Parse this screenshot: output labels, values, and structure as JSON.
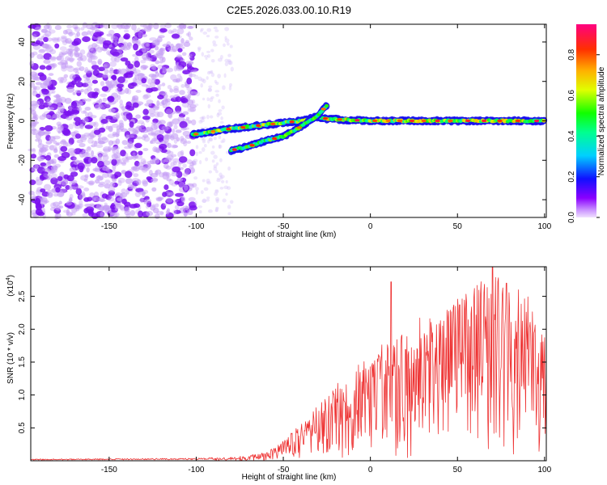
{
  "chart_data": [
    {
      "type": "heatmap",
      "title": "C2E5.2026.033.00.10.R19",
      "xlabel": "Height of straight line (km)",
      "ylabel": "Frequency (Hz)",
      "xlim": [
        -195,
        101
      ],
      "ylim": [
        -49,
        49
      ],
      "x_ticks": [
        -150,
        -100,
        -50,
        0,
        50,
        100
      ],
      "y_ticks": [
        -40,
        -20,
        0,
        20,
        40
      ],
      "x_tick_labels": [
        "-150",
        "-100",
        "-50",
        "0",
        "50",
        "100"
      ],
      "y_tick_labels": [
        "-40",
        "-20",
        "0",
        "20",
        "40"
      ],
      "colorbar": {
        "label": "Normalized spectral amplitude",
        "range": [
          0,
          0.95
        ],
        "ticks": [
          0.0,
          0.2,
          0.4,
          0.6,
          0.8
        ],
        "tick_labels": [
          "0.0",
          "0.2",
          "0.4",
          "0.6",
          "0.8"
        ]
      },
      "features": [
        {
          "name": "main-trace",
          "points": [
            [
              -102,
              -7
            ],
            [
              -80,
              -4
            ],
            [
              -60,
              -2
            ],
            [
              -40,
              0
            ],
            [
              -30,
              2
            ],
            [
              -25,
              1
            ],
            [
              0,
              0
            ],
            [
              50,
              0
            ],
            [
              100,
              0
            ]
          ]
        },
        {
          "name": "secondary-trace",
          "points": [
            [
              -80,
              -15
            ],
            [
              -70,
              -13
            ],
            [
              -60,
              -10
            ],
            [
              -50,
              -8
            ],
            [
              -40,
              -3
            ],
            [
              -30,
              3
            ],
            [
              -25,
              8
            ]
          ]
        }
      ]
    },
    {
      "type": "line",
      "xlabel": "Height of straight line (km)",
      "ylabel": "SNR (10 * v/v)",
      "y_scale_label": "(x10",
      "y_scale_exp": "4",
      "y_scale_close": ")",
      "xlim": [
        -195,
        101
      ],
      "ylim": [
        0,
        2.95
      ],
      "x_ticks": [
        -150,
        -100,
        -50,
        0,
        50,
        100
      ],
      "y_ticks": [
        0.5,
        1.0,
        1.5,
        2.0,
        2.5
      ],
      "x_tick_labels": [
        "-150",
        "-100",
        "-50",
        "0",
        "50",
        "100"
      ],
      "y_tick_labels": [
        "0.5",
        "1.0",
        "1.5",
        "2.0",
        "2.5"
      ],
      "line_color": "#ee3333",
      "envelope_x": [
        -195,
        -100,
        -80,
        -60,
        -50,
        -40,
        -30,
        -20,
        -10,
        0,
        10,
        20,
        30,
        40,
        50,
        60,
        70,
        80,
        90,
        101
      ],
      "envelope_y": [
        0.02,
        0.03,
        0.05,
        0.12,
        0.3,
        0.55,
        0.85,
        1.1,
        1.4,
        1.5,
        1.8,
        2.0,
        2.1,
        2.3,
        2.4,
        2.55,
        2.7,
        2.6,
        2.4,
        2.0
      ],
      "notable_peaks": [
        [
          12,
          2.72
        ],
        [
          70,
          2.95
        ],
        [
          78,
          2.7
        ],
        [
          85,
          2.6
        ]
      ]
    }
  ]
}
